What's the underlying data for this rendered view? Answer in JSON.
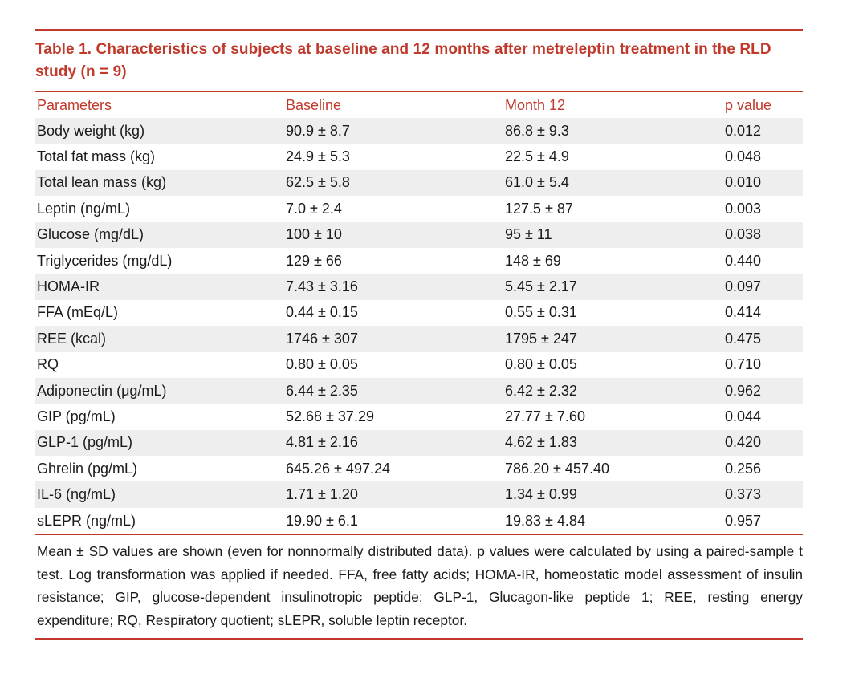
{
  "table": {
    "title": "Table 1. Characteristics of subjects at baseline and 12 months after metreleptin treatment in the RLD study (n = 9)",
    "headers": [
      "Parameters",
      "Baseline",
      "Month 12",
      "p value"
    ],
    "rows": [
      [
        "Body weight (kg)",
        "90.9 ± 8.7",
        "86.8 ± 9.3",
        "0.012"
      ],
      [
        "Total fat mass (kg)",
        "24.9 ± 5.3",
        "22.5 ± 4.9",
        "0.048"
      ],
      [
        "Total lean mass (kg)",
        "62.5 ± 5.8",
        "61.0 ± 5.4",
        "0.010"
      ],
      [
        "Leptin (ng/mL)",
        "7.0 ± 2.4",
        "127.5 ± 87",
        "0.003"
      ],
      [
        "Glucose (mg/dL)",
        "100 ± 10",
        "95 ± 11",
        "0.038"
      ],
      [
        "Triglycerides (mg/dL)",
        "129 ± 66",
        "148 ± 69",
        "0.440"
      ],
      [
        "HOMA-IR",
        "7.43 ± 3.16",
        "5.45 ± 2.17",
        "0.097"
      ],
      [
        "FFA (mEq/L)",
        "0.44 ± 0.15",
        "0.55 ± 0.31",
        "0.414"
      ],
      [
        "REE (kcal)",
        "1746 ± 307",
        "1795 ± 247",
        "0.475"
      ],
      [
        "RQ",
        "0.80 ± 0.05",
        "0.80 ± 0.05",
        "0.710"
      ],
      [
        "Adiponectin (μg/mL)",
        "6.44 ± 2.35",
        "6.42 ± 2.32",
        "0.962"
      ],
      [
        "GIP (pg/mL)",
        "52.68 ± 37.29",
        "27.77 ± 7.60",
        "0.044"
      ],
      [
        "GLP-1 (pg/mL)",
        "4.81 ± 2.16",
        "4.62 ± 1.83",
        "0.420"
      ],
      [
        "Ghrelin (pg/mL)",
        "645.26 ± 497.24",
        "786.20 ± 457.40",
        "0.256"
      ],
      [
        "IL-6 (ng/mL)",
        "1.71 ± 1.20",
        "1.34 ± 0.99",
        "0.373"
      ],
      [
        "sLEPR (ng/mL)",
        "19.90 ± 6.1",
        "19.83 ± 4.84",
        "0.957"
      ]
    ],
    "footnote": "Mean ± SD values are shown (even for nonnormally distributed data). p values were calculated by using a paired-sample t test. Log transformation was applied if needed. FFA, free fatty acids; HOMA-IR, homeostatic model assessment of insulin resistance; GIP, glucose-dependent insulinotropic peptide; GLP-1, Glucagon-like peptide 1; REE, resting energy expenditure; RQ, Respiratory quotient; sLEPR, soluble leptin receptor.",
    "accent_color": "#c0392b",
    "stripe_color": "#eeeeee"
  }
}
